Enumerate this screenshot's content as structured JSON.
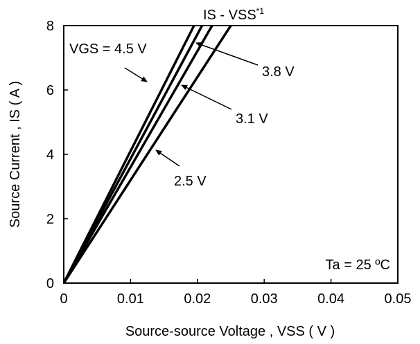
{
  "chart_data": {
    "type": "line",
    "title": "IS - VSS",
    "title_superscript": "*1",
    "xlabel": "Source-source Voltage , VSS ( V )",
    "ylabel": "Source Current , IS ( A )",
    "xlim": [
      0,
      0.05
    ],
    "ylim": [
      0,
      8
    ],
    "xticks": [
      0,
      0.01,
      0.02,
      0.03,
      0.04,
      0.05
    ],
    "xtick_labels": [
      "0",
      "0.01",
      "0.02",
      "0.03",
      "0.04",
      "0.05"
    ],
    "yticks": [
      0,
      2,
      4,
      6,
      8
    ],
    "ytick_labels": [
      "0",
      "2",
      "4",
      "6",
      "8"
    ],
    "grid": false,
    "annotation": "Ta = 25 ºC",
    "series": [
      {
        "name": "VGS = 4.5 V",
        "x": [
          0,
          0.0195
        ],
        "y": [
          0,
          8
        ]
      },
      {
        "name": "3.8 V",
        "x": [
          0,
          0.0207
        ],
        "y": [
          0,
          8
        ]
      },
      {
        "name": "3.1 V",
        "x": [
          0,
          0.0222
        ],
        "y": [
          0,
          8
        ]
      },
      {
        "name": "2.5 V",
        "x": [
          0,
          0.025
        ],
        "y": [
          0,
          8
        ]
      }
    ],
    "colors": {
      "line": "#000000",
      "frame": "#000000"
    }
  }
}
